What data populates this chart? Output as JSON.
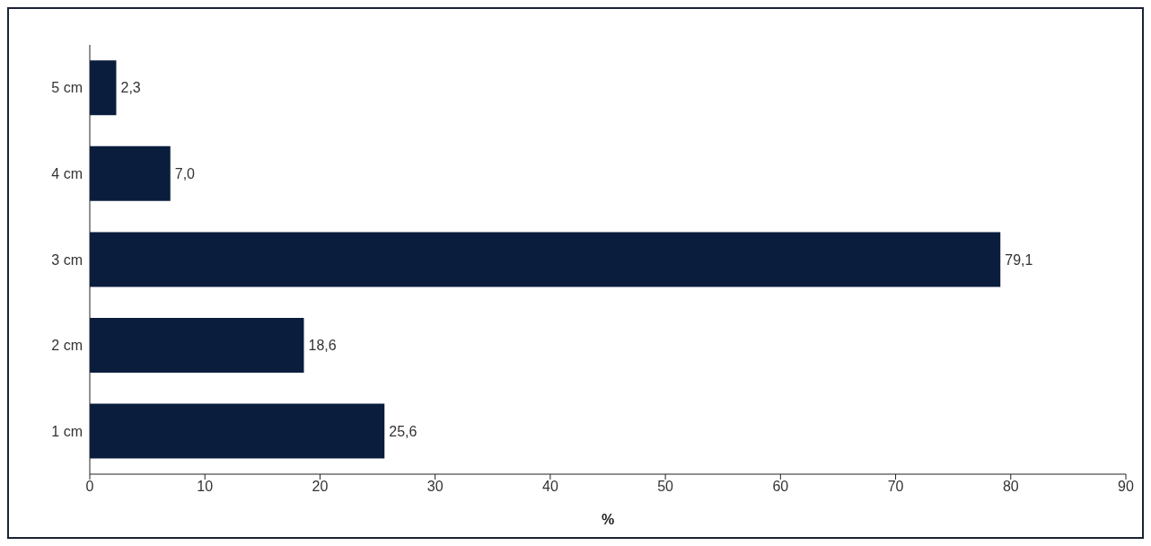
{
  "chart_data": {
    "type": "bar",
    "orientation": "horizontal",
    "categories": [
      "5 cm",
      "4 cm",
      "3 cm",
      "2 cm",
      "1 cm"
    ],
    "values": [
      2.3,
      7.0,
      79.1,
      18.6,
      25.6
    ],
    "value_labels": [
      "2,3",
      "7,0",
      "79,1",
      "18,6",
      "25,6"
    ],
    "color": "#0b1d3d",
    "xlabel": "%",
    "xlim": [
      0,
      90
    ],
    "xticks": [
      0,
      10,
      20,
      30,
      40,
      50,
      60,
      70,
      80,
      90
    ],
    "grid": false
  }
}
